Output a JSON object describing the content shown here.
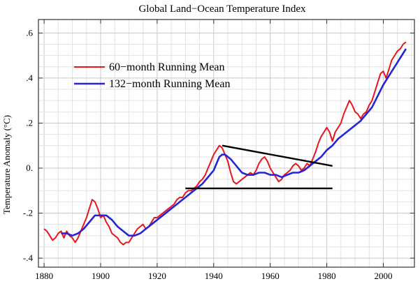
{
  "chart_data": {
    "type": "line",
    "title": "Global Land−Ocean Temperature Index",
    "xlabel": "",
    "ylabel": "Temperature Anomaly (°C)",
    "xlim": [
      1878,
      2011
    ],
    "ylim": [
      -0.44,
      0.66
    ],
    "x_ticks": [
      1880,
      1900,
      1920,
      1940,
      1960,
      1980,
      2000
    ],
    "x_tick_labels": [
      "1880",
      "1900",
      "1920",
      "1940",
      "1960",
      "1980",
      "2000"
    ],
    "y_ticks": [
      -0.4,
      -0.2,
      0.0,
      0.2,
      0.4,
      0.6
    ],
    "y_tick_labels": [
      "-.4",
      "-.2",
      "0.",
      ".2",
      ".4",
      ".6"
    ],
    "grid": true,
    "legend_position": "upper-left",
    "series": [
      {
        "name": "60−month Running Mean",
        "color": "#e8141e",
        "x": [
          1880,
          1881,
          1882,
          1883,
          1884,
          1885,
          1886,
          1887,
          1888,
          1889,
          1890,
          1891,
          1892,
          1893,
          1894,
          1895,
          1896,
          1897,
          1898,
          1899,
          1900,
          1901,
          1902,
          1903,
          1904,
          1905,
          1906,
          1907,
          1908,
          1909,
          1910,
          1911,
          1912,
          1913,
          1914,
          1915,
          1916,
          1917,
          1918,
          1919,
          1920,
          1921,
          1922,
          1923,
          1924,
          1925,
          1926,
          1927,
          1928,
          1929,
          1930,
          1931,
          1932,
          1933,
          1934,
          1935,
          1936,
          1937,
          1938,
          1939,
          1940,
          1941,
          1942,
          1943,
          1944,
          1945,
          1946,
          1947,
          1948,
          1949,
          1950,
          1951,
          1952,
          1953,
          1954,
          1955,
          1956,
          1957,
          1958,
          1959,
          1960,
          1961,
          1962,
          1963,
          1964,
          1965,
          1966,
          1967,
          1968,
          1969,
          1970,
          1971,
          1972,
          1973,
          1974,
          1975,
          1976,
          1977,
          1978,
          1979,
          1980,
          1981,
          1982,
          1983,
          1984,
          1985,
          1986,
          1987,
          1988,
          1989,
          1990,
          1991,
          1992,
          1993,
          1994,
          1995,
          1996,
          1997,
          1998,
          1999,
          2000,
          2001,
          2002,
          2003,
          2004,
          2005,
          2006,
          2007,
          2008
        ],
        "y": [
          -0.27,
          -0.28,
          -0.3,
          -0.32,
          -0.31,
          -0.29,
          -0.28,
          -0.31,
          -0.28,
          -0.3,
          -0.31,
          -0.33,
          -0.31,
          -0.28,
          -0.25,
          -0.22,
          -0.18,
          -0.14,
          -0.15,
          -0.18,
          -0.22,
          -0.21,
          -0.24,
          -0.26,
          -0.29,
          -0.3,
          -0.31,
          -0.33,
          -0.34,
          -0.33,
          -0.33,
          -0.31,
          -0.29,
          -0.27,
          -0.26,
          -0.25,
          -0.27,
          -0.26,
          -0.24,
          -0.22,
          -0.22,
          -0.21,
          -0.2,
          -0.19,
          -0.18,
          -0.17,
          -0.16,
          -0.14,
          -0.13,
          -0.13,
          -0.11,
          -0.1,
          -0.1,
          -0.09,
          -0.08,
          -0.06,
          -0.05,
          -0.03,
          0.0,
          0.03,
          0.06,
          0.08,
          0.1,
          0.09,
          0.06,
          0.03,
          -0.02,
          -0.06,
          -0.07,
          -0.06,
          -0.05,
          -0.04,
          -0.03,
          -0.02,
          -0.03,
          -0.01,
          0.02,
          0.04,
          0.05,
          0.03,
          0.0,
          -0.02,
          -0.04,
          -0.06,
          -0.05,
          -0.03,
          -0.02,
          -0.01,
          0.01,
          0.02,
          0.01,
          -0.01,
          0.0,
          0.02,
          0.01,
          0.04,
          0.07,
          0.11,
          0.14,
          0.16,
          0.18,
          0.16,
          0.12,
          0.16,
          0.18,
          0.2,
          0.24,
          0.27,
          0.3,
          0.28,
          0.25,
          0.24,
          0.22,
          0.24,
          0.25,
          0.28,
          0.3,
          0.34,
          0.38,
          0.42,
          0.43,
          0.4,
          0.44,
          0.48,
          0.5,
          0.52,
          0.53,
          0.55,
          0.56
        ]
      },
      {
        "name": "132−month Running Mean",
        "color": "#2424d8",
        "x": [
          1886,
          1888,
          1890,
          1892,
          1894,
          1896,
          1898,
          1900,
          1902,
          1904,
          1906,
          1908,
          1910,
          1912,
          1914,
          1916,
          1918,
          1920,
          1922,
          1924,
          1926,
          1928,
          1930,
          1932,
          1934,
          1936,
          1938,
          1940,
          1941,
          1942,
          1943,
          1944,
          1946,
          1948,
          1950,
          1952,
          1954,
          1956,
          1958,
          1960,
          1962,
          1964,
          1966,
          1968,
          1970,
          1972,
          1974,
          1976,
          1978,
          1980,
          1982,
          1984,
          1986,
          1988,
          1990,
          1992,
          1994,
          1996,
          1998,
          2000,
          2002,
          2004,
          2006,
          2008
        ],
        "y": [
          -0.29,
          -0.29,
          -0.3,
          -0.29,
          -0.27,
          -0.24,
          -0.21,
          -0.21,
          -0.21,
          -0.23,
          -0.26,
          -0.28,
          -0.3,
          -0.3,
          -0.29,
          -0.27,
          -0.25,
          -0.23,
          -0.21,
          -0.19,
          -0.17,
          -0.15,
          -0.13,
          -0.11,
          -0.09,
          -0.07,
          -0.04,
          -0.01,
          0.02,
          0.05,
          0.06,
          0.06,
          0.04,
          0.01,
          -0.02,
          -0.03,
          -0.03,
          -0.02,
          -0.02,
          -0.03,
          -0.03,
          -0.04,
          -0.03,
          -0.02,
          -0.02,
          -0.01,
          0.01,
          0.03,
          0.05,
          0.08,
          0.1,
          0.13,
          0.15,
          0.17,
          0.19,
          0.21,
          0.24,
          0.27,
          0.32,
          0.37,
          0.41,
          0.45,
          0.49,
          0.53
        ]
      }
    ],
    "annotations": [
      {
        "type": "line",
        "x": [
          1943,
          1982
        ],
        "y": [
          0.1,
          0.01
        ]
      },
      {
        "type": "line",
        "x": [
          1930,
          1982
        ],
        "y": [
          -0.09,
          -0.09
        ]
      }
    ]
  }
}
